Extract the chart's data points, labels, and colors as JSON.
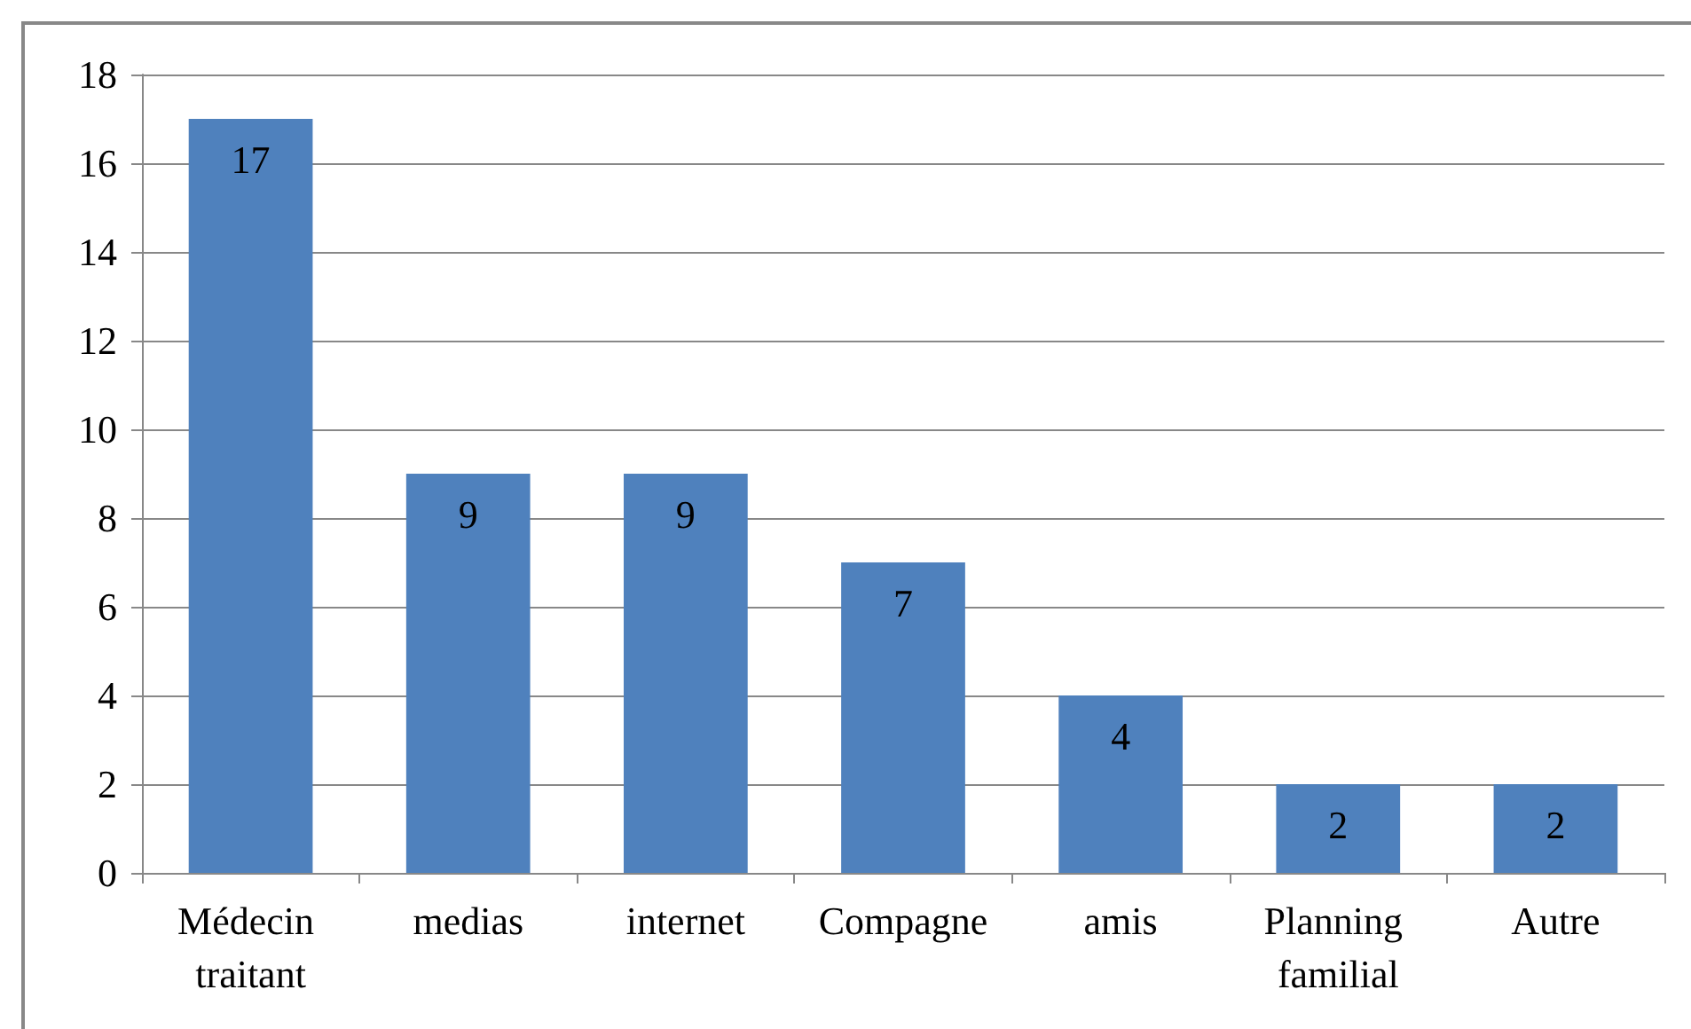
{
  "chart_data": {
    "type": "bar",
    "categories": [
      "Médecin traitant",
      "medias",
      "internet",
      "Compagne",
      "amis",
      "Planning familial",
      "Autre"
    ],
    "values": [
      17,
      9,
      9,
      7,
      4,
      2,
      2
    ],
    "color": "#4f81bd",
    "ylim": [
      0,
      18
    ],
    "yticks": [
      0,
      2,
      4,
      6,
      8,
      10,
      12,
      14,
      16,
      18
    ],
    "grid": "y",
    "data_labels": true
  }
}
